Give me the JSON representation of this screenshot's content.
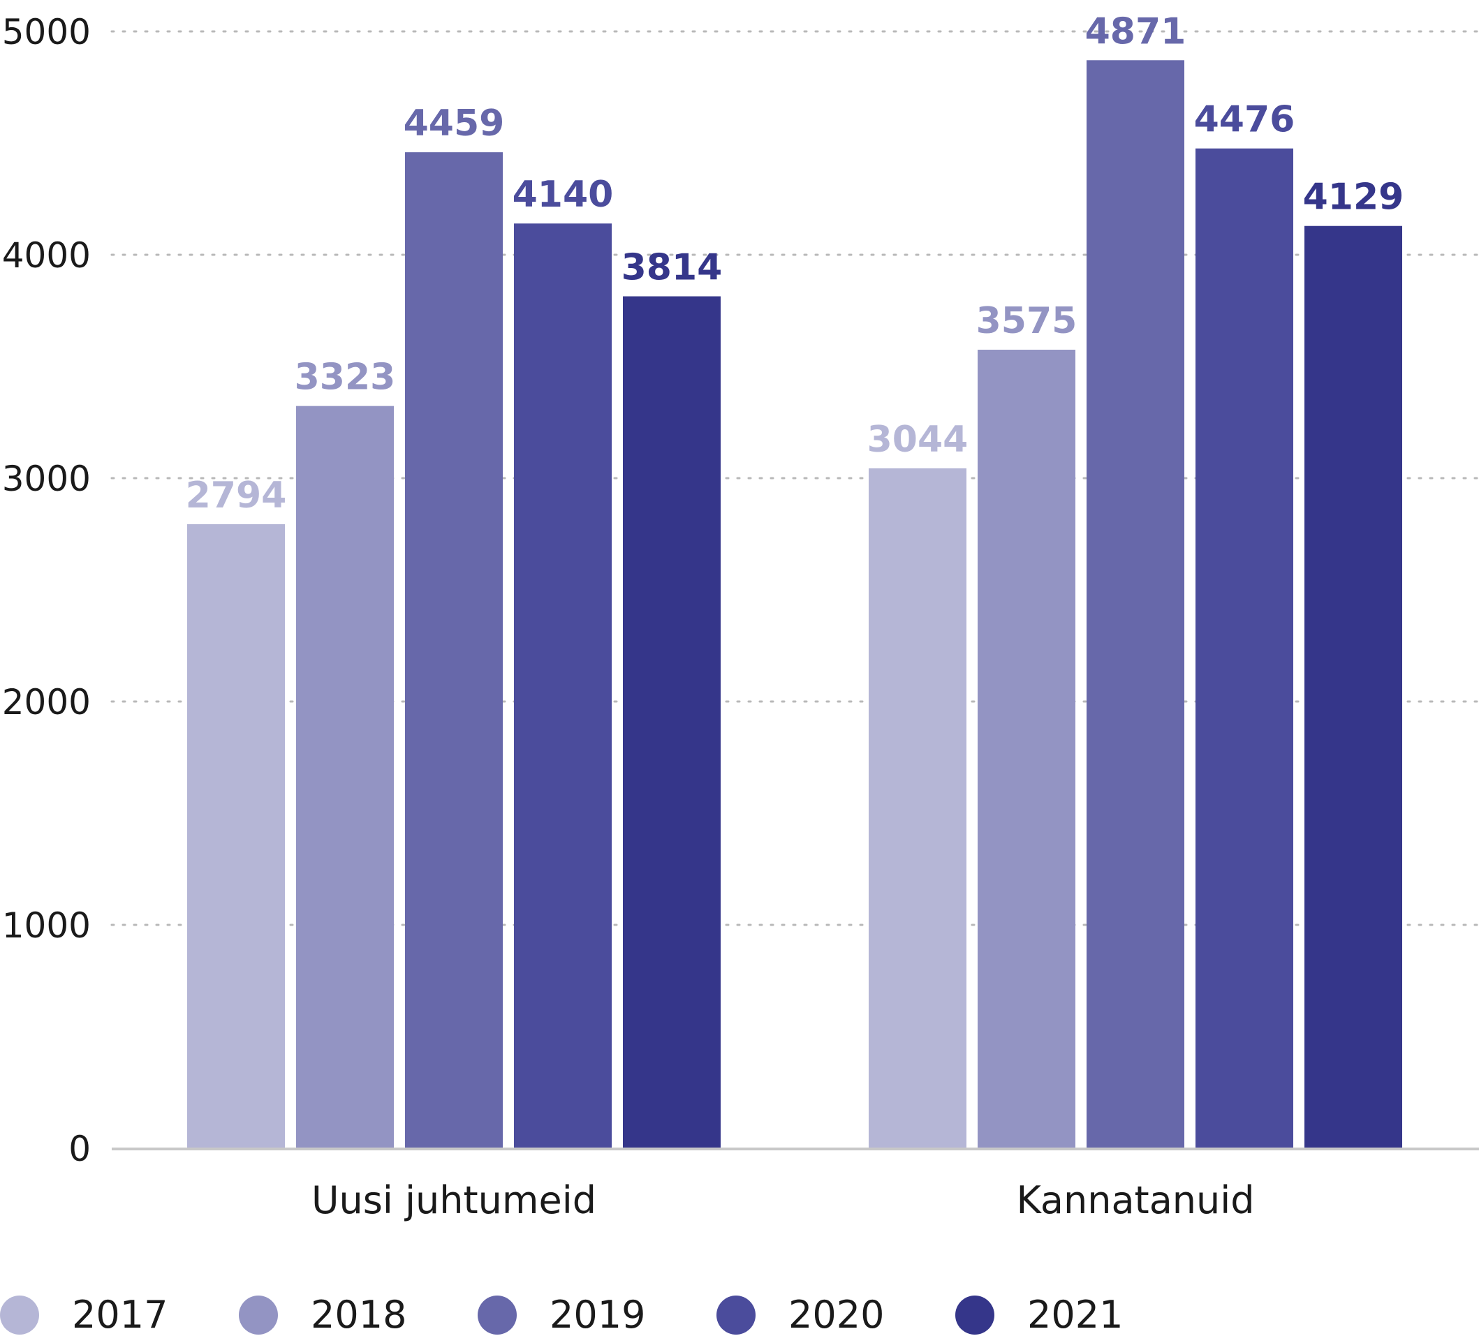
{
  "chart_data": {
    "type": "bar",
    "categories": [
      "Uusi juhtumeid",
      "Kannatanuid"
    ],
    "series": [
      {
        "name": "2017",
        "color": "#b5b6d6",
        "values": [
          2794,
          3044
        ]
      },
      {
        "name": "2018",
        "color": "#9394c3",
        "values": [
          3323,
          3575
        ]
      },
      {
        "name": "2019",
        "color": "#6768aa",
        "values": [
          4459,
          4871
        ]
      },
      {
        "name": "2020",
        "color": "#4b4c9c",
        "values": [
          4140,
          4476
        ]
      },
      {
        "name": "2021",
        "color": "#35368a",
        "values": [
          3814,
          4129
        ]
      }
    ],
    "yticks": [
      "0",
      "1000",
      "2000",
      "3000",
      "4000",
      "5000"
    ],
    "ylim": [
      0,
      5000
    ],
    "grid": "horizontal dotted",
    "legend": "bottom"
  }
}
